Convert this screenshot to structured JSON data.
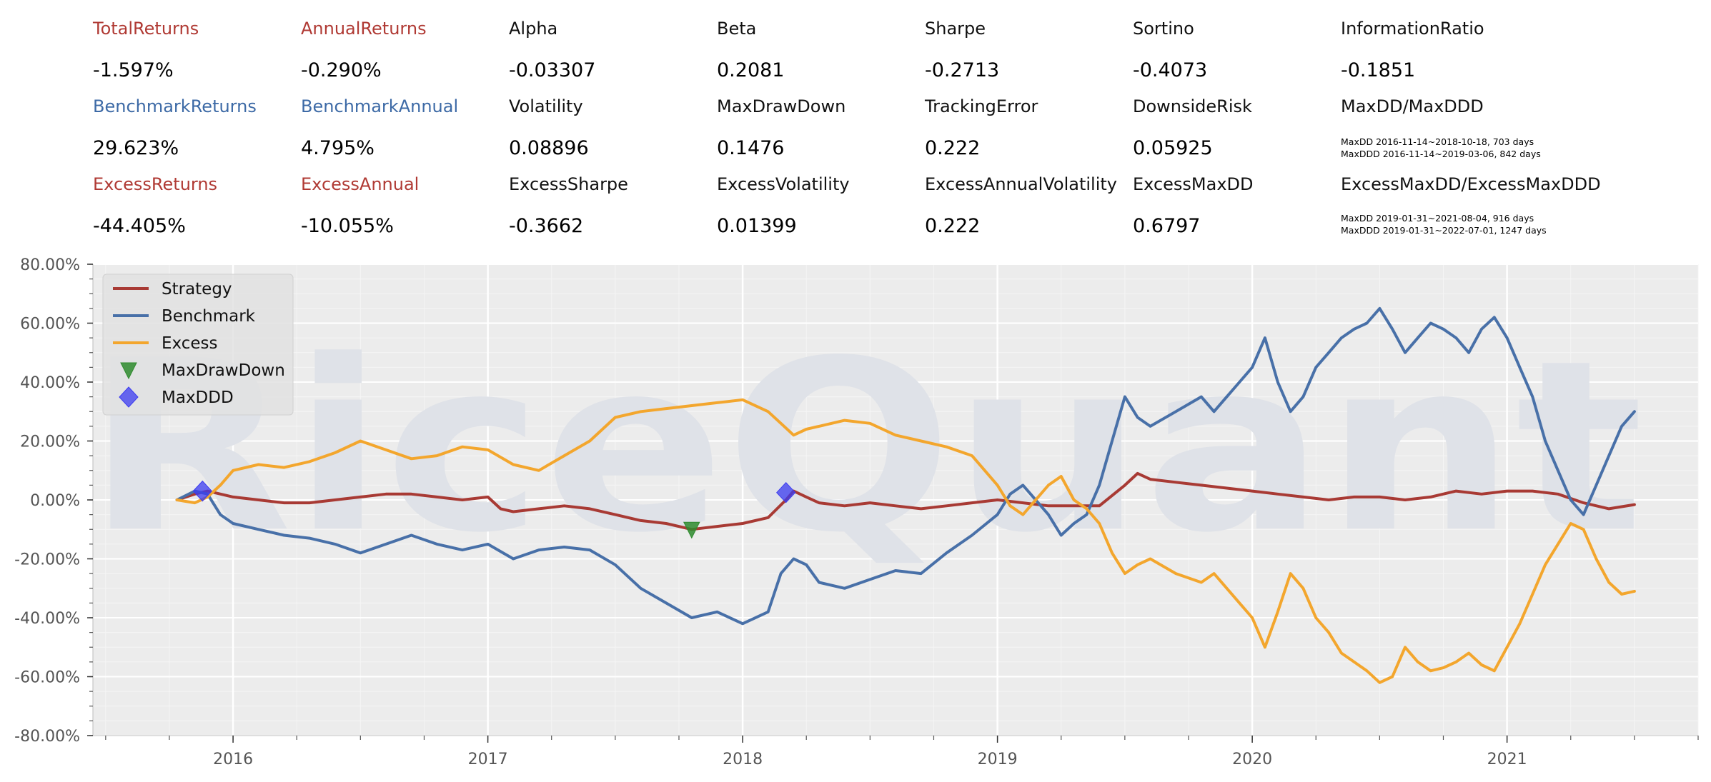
{
  "colors": {
    "strategy": "#a83a34",
    "benchmark": "#4870a8",
    "excess": "#f3a62d",
    "max_drawdown_marker": "#2e8b2e",
    "max_ddd_marker": "#3b3bf0",
    "label_red": "#b03a34",
    "label_blue": "#3d6aa6",
    "label_black": "#111111",
    "plot_background": "#ececec",
    "grid": "#ffffff",
    "watermark": "#dfe2e8"
  },
  "watermark_text": "RiceQuant",
  "metrics": {
    "rows": [
      [
        {
          "label": "TotalReturns",
          "value": "-1.597%",
          "color": "red"
        },
        {
          "label": "AnnualReturns",
          "value": "-0.290%",
          "color": "red"
        },
        {
          "label": "Alpha",
          "value": "-0.03307",
          "color": "black"
        },
        {
          "label": "Beta",
          "value": "0.2081",
          "color": "black"
        },
        {
          "label": "Sharpe",
          "value": "-0.2713",
          "color": "black"
        },
        {
          "label": "Sortino",
          "value": "-0.4073",
          "color": "black"
        },
        {
          "label": "InformationRatio",
          "value": "-0.1851",
          "color": "black"
        }
      ],
      [
        {
          "label": "BenchmarkReturns",
          "value": "29.623%",
          "color": "blue"
        },
        {
          "label": "BenchmarkAnnual",
          "value": "4.795%",
          "color": "blue"
        },
        {
          "label": "Volatility",
          "value": "0.08896",
          "color": "black"
        },
        {
          "label": "MaxDrawDown",
          "value": "0.1476",
          "color": "black"
        },
        {
          "label": "TrackingError",
          "value": "0.222",
          "color": "black"
        },
        {
          "label": "DownsideRisk",
          "value": "0.05925",
          "color": "black"
        },
        {
          "label": "MaxDD/MaxDDD",
          "note": [
            "MaxDD 2016-11-14~2018-10-18, 703 days",
            "MaxDDD 2016-11-14~2019-03-06, 842 days"
          ],
          "color": "black"
        }
      ],
      [
        {
          "label": "ExcessReturns",
          "value": "-44.405%",
          "color": "red"
        },
        {
          "label": "ExcessAnnual",
          "value": "-10.055%",
          "color": "red"
        },
        {
          "label": "ExcessSharpe",
          "value": "-0.3662",
          "color": "black"
        },
        {
          "label": "ExcessVolatility",
          "value": "0.01399",
          "color": "black"
        },
        {
          "label": "ExcessAnnualVolatility",
          "value": "0.222",
          "color": "black"
        },
        {
          "label": "ExcessMaxDD",
          "value": "0.6797",
          "color": "black"
        },
        {
          "label": "ExcessMaxDD/ExcessMaxDDD",
          "note": [
            "MaxDD 2019-01-31~2021-08-04, 916 days",
            "MaxDDD 2019-01-31~2022-07-01, 1247 days"
          ],
          "color": "black"
        }
      ]
    ]
  },
  "chart_data": {
    "type": "line",
    "ylim": [
      -80,
      80
    ],
    "y_ticks": [
      80,
      60,
      40,
      20,
      0,
      -20,
      -40,
      -60,
      -80
    ],
    "y_tick_labels": [
      "80.00%",
      "60.00%",
      "40.00%",
      "20.00%",
      "0.00%",
      "-20.00%",
      "-40.00%",
      "-60.00%",
      "-80.00%"
    ],
    "xlim": [
      2015.45,
      2021.75
    ],
    "x_ticks": [
      2016,
      2017,
      2018,
      2019,
      2020,
      2021
    ],
    "x_tick_labels": [
      "2016",
      "2017",
      "2018",
      "2019",
      "2020",
      "2021"
    ],
    "grid": true,
    "legend_position": "top-left",
    "series": [
      {
        "name": "Strategy",
        "color_key": "strategy",
        "x": [
          2015.78,
          2015.85,
          2015.9,
          2016.0,
          2016.1,
          2016.2,
          2016.3,
          2016.4,
          2016.5,
          2016.6,
          2016.7,
          2016.8,
          2016.9,
          2017.0,
          2017.05,
          2017.1,
          2017.2,
          2017.3,
          2017.4,
          2017.5,
          2017.6,
          2017.7,
          2017.8,
          2017.9,
          2018.0,
          2018.1,
          2018.17,
          2018.2,
          2018.25,
          2018.3,
          2018.4,
          2018.5,
          2018.6,
          2018.7,
          2018.8,
          2018.9,
          2019.0,
          2019.1,
          2019.2,
          2019.3,
          2019.4,
          2019.5,
          2019.55,
          2019.6,
          2019.7,
          2019.8,
          2019.9,
          2020.0,
          2020.1,
          2020.2,
          2020.3,
          2020.4,
          2020.5,
          2020.6,
          2020.7,
          2020.8,
          2020.9,
          2021.0,
          2021.1,
          2021.2,
          2021.3,
          2021.4,
          2021.5
        ],
        "y": [
          0,
          2,
          3,
          1,
          0,
          -1,
          -1,
          0,
          1,
          2,
          2,
          1,
          0,
          1,
          -3,
          -4,
          -3,
          -2,
          -3,
          -5,
          -7,
          -8,
          -10,
          -9,
          -8,
          -6,
          0,
          3,
          1,
          -1,
          -2,
          -1,
          -2,
          -3,
          -2,
          -1,
          0,
          -1,
          -2,
          -2,
          -2,
          5,
          9,
          7,
          6,
          5,
          4,
          3,
          2,
          1,
          0,
          1,
          1,
          0,
          1,
          3,
          2,
          3,
          3,
          2,
          -1,
          -3,
          -1.6
        ]
      },
      {
        "name": "Benchmark",
        "color_key": "benchmark",
        "x": [
          2015.78,
          2015.85,
          2015.9,
          2015.95,
          2016.0,
          2016.1,
          2016.2,
          2016.3,
          2016.4,
          2016.5,
          2016.6,
          2016.7,
          2016.8,
          2016.9,
          2017.0,
          2017.1,
          2017.2,
          2017.3,
          2017.4,
          2017.5,
          2017.6,
          2017.7,
          2017.8,
          2017.9,
          2018.0,
          2018.1,
          2018.15,
          2018.2,
          2018.25,
          2018.3,
          2018.4,
          2018.5,
          2018.6,
          2018.7,
          2018.8,
          2018.9,
          2019.0,
          2019.05,
          2019.1,
          2019.2,
          2019.25,
          2019.3,
          2019.35,
          2019.4,
          2019.45,
          2019.5,
          2019.55,
          2019.6,
          2019.7,
          2019.8,
          2019.85,
          2019.9,
          2019.95,
          2020.0,
          2020.05,
          2020.1,
          2020.15,
          2020.2,
          2020.25,
          2020.3,
          2020.35,
          2020.4,
          2020.45,
          2020.5,
          2020.55,
          2020.6,
          2020.65,
          2020.7,
          2020.75,
          2020.8,
          2020.85,
          2020.9,
          2020.95,
          2021.0,
          2021.05,
          2021.1,
          2021.15,
          2021.2,
          2021.25,
          2021.3,
          2021.35,
          2021.4,
          2021.45,
          2021.5
        ],
        "y": [
          0,
          3,
          2,
          -5,
          -8,
          -10,
          -12,
          -13,
          -15,
          -18,
          -15,
          -12,
          -15,
          -17,
          -15,
          -20,
          -17,
          -16,
          -17,
          -22,
          -30,
          -35,
          -40,
          -38,
          -42,
          -38,
          -25,
          -20,
          -22,
          -28,
          -30,
          -27,
          -24,
          -25,
          -18,
          -12,
          -5,
          2,
          5,
          -5,
          -12,
          -8,
          -5,
          5,
          20,
          35,
          28,
          25,
          30,
          35,
          30,
          35,
          40,
          45,
          55,
          40,
          30,
          35,
          45,
          50,
          55,
          58,
          60,
          65,
          58,
          50,
          55,
          60,
          58,
          55,
          50,
          58,
          62,
          55,
          45,
          35,
          20,
          10,
          0,
          -5,
          5,
          15,
          25,
          30
        ]
      },
      {
        "name": "Excess",
        "color_key": "excess",
        "x": [
          2015.78,
          2015.85,
          2015.9,
          2015.95,
          2016.0,
          2016.1,
          2016.2,
          2016.3,
          2016.4,
          2016.5,
          2016.6,
          2016.7,
          2016.8,
          2016.9,
          2017.0,
          2017.1,
          2017.2,
          2017.3,
          2017.4,
          2017.5,
          2017.6,
          2017.7,
          2017.8,
          2017.9,
          2018.0,
          2018.1,
          2018.15,
          2018.2,
          2018.25,
          2018.3,
          2018.4,
          2018.5,
          2018.6,
          2018.7,
          2018.8,
          2018.9,
          2019.0,
          2019.05,
          2019.1,
          2019.2,
          2019.25,
          2019.3,
          2019.35,
          2019.4,
          2019.45,
          2019.5,
          2019.55,
          2019.6,
          2019.7,
          2019.8,
          2019.85,
          2019.9,
          2019.95,
          2020.0,
          2020.05,
          2020.1,
          2020.15,
          2020.2,
          2020.25,
          2020.3,
          2020.35,
          2020.4,
          2020.45,
          2020.5,
          2020.55,
          2020.6,
          2020.65,
          2020.7,
          2020.75,
          2020.8,
          2020.85,
          2020.9,
          2020.95,
          2021.0,
          2021.05,
          2021.1,
          2021.15,
          2021.2,
          2021.25,
          2021.3,
          2021.35,
          2021.4,
          2021.45,
          2021.5
        ],
        "y": [
          0,
          -1,
          1,
          5,
          10,
          12,
          11,
          13,
          16,
          20,
          17,
          14,
          15,
          18,
          17,
          12,
          10,
          15,
          20,
          28,
          30,
          31,
          32,
          33,
          34,
          30,
          26,
          22,
          24,
          25,
          27,
          26,
          22,
          20,
          18,
          15,
          5,
          -2,
          -5,
          5,
          8,
          0,
          -3,
          -8,
          -18,
          -25,
          -22,
          -20,
          -25,
          -28,
          -25,
          -30,
          -35,
          -40,
          -50,
          -38,
          -25,
          -30,
          -40,
          -45,
          -52,
          -55,
          -58,
          -62,
          -60,
          -50,
          -55,
          -58,
          -57,
          -55,
          -52,
          -56,
          -58,
          -50,
          -42,
          -32,
          -22,
          -15,
          -8,
          -10,
          -20,
          -28,
          -32,
          -31
        ]
      }
    ],
    "markers": [
      {
        "name": "MaxDrawDown",
        "shape": "triangle-down",
        "color_key": "max_drawdown_marker",
        "points": [
          {
            "x": 2017.8,
            "y": -10
          }
        ]
      },
      {
        "name": "MaxDDD",
        "shape": "diamond",
        "color_key": "max_ddd_marker",
        "points": [
          {
            "x": 2015.88,
            "y": 3
          },
          {
            "x": 2018.17,
            "y": 2.5
          }
        ]
      }
    ]
  }
}
